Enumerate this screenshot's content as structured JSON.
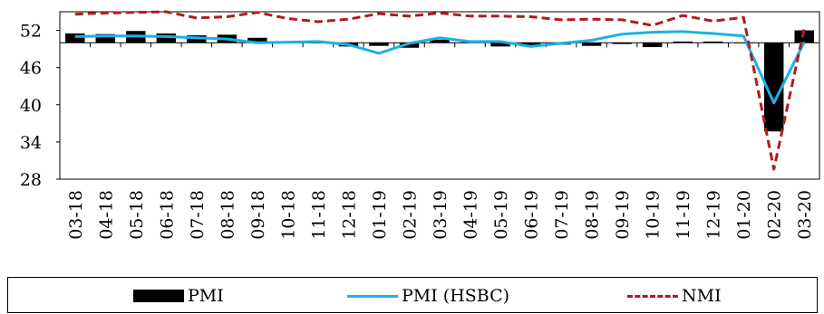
{
  "chart_data": {
    "type": "bar",
    "categories": [
      "03-18",
      "04-18",
      "05-18",
      "06-18",
      "07-18",
      "08-18",
      "09-18",
      "10-18",
      "11-18",
      "12-18",
      "01-19",
      "02-19",
      "03-19",
      "04-19",
      "05-19",
      "06-19",
      "07-19",
      "08-19",
      "09-19",
      "10-19",
      "11-19",
      "12-19",
      "01-20",
      "02-20",
      "03-20"
    ],
    "ylim": [
      28,
      55
    ],
    "yticks": [
      28,
      34,
      40,
      46,
      52
    ],
    "baseline": 50,
    "series": [
      {
        "name": "PMI",
        "type": "bar",
        "color": "#000000",
        "values": [
          51.5,
          51.4,
          51.9,
          51.5,
          51.2,
          51.3,
          50.8,
          50.2,
          50.0,
          49.4,
          49.5,
          49.2,
          50.5,
          50.1,
          49.4,
          49.4,
          49.7,
          49.5,
          49.8,
          49.3,
          50.2,
          50.2,
          50.0,
          35.7,
          52.0
        ]
      },
      {
        "name": "PMI (HSBC)",
        "type": "line",
        "color": "#1fb0e6",
        "values": [
          51.0,
          51.1,
          51.1,
          51.0,
          50.8,
          50.6,
          50.0,
          50.1,
          50.2,
          49.7,
          48.3,
          49.9,
          50.8,
          50.2,
          50.2,
          49.4,
          49.9,
          50.4,
          51.4,
          51.7,
          51.8,
          51.5,
          51.1,
          40.3,
          50.1
        ]
      },
      {
        "name": "NMI",
        "type": "line",
        "style": "dashed",
        "color": "#b01c1c",
        "values": [
          54.6,
          54.8,
          54.9,
          55.0,
          54.0,
          54.2,
          54.9,
          53.9,
          53.4,
          53.8,
          54.7,
          54.3,
          54.8,
          54.3,
          54.3,
          54.2,
          53.7,
          53.8,
          53.7,
          52.8,
          54.4,
          53.5,
          54.1,
          29.6,
          52.3
        ]
      }
    ],
    "legend_position": "bottom",
    "title": "",
    "xlabel": "",
    "ylabel": ""
  },
  "legend": {
    "items": [
      {
        "label": "PMI"
      },
      {
        "label": "PMI (HSBC)"
      },
      {
        "label": "NMI"
      }
    ]
  }
}
